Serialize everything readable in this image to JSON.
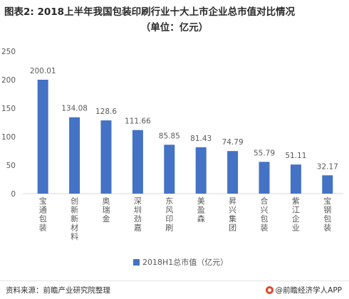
{
  "header": {
    "title": "图表2: 2018上半年我国包装印刷行业十大上市企业总市值对比情况",
    "subtitle": "（单位：亿元）"
  },
  "footer": {
    "source": "资料来源：前瞻产业研究院整理",
    "brand": "@前瞻经济学人APP",
    "brand_icon": "qianzhan-logo-icon"
  },
  "colors": {
    "bar": "#4472C4",
    "axis": "#d9d9d9",
    "text": "#595959"
  },
  "chart_data": {
    "type": "bar",
    "title": "图表2: 2018上半年我国包装印刷行业十大上市企业总市值对比情况",
    "subtitle": "（单位：亿元）",
    "categories": [
      "宝通包装",
      "创新新材料",
      "奥瑞金",
      "深圳劲嘉",
      "东风印刷",
      "美盈森",
      "昇兴集团",
      "合兴包装",
      "紫江企业",
      "宝钢包装"
    ],
    "series": [
      {
        "name": "2018H1总市值（亿元）",
        "values": [
          200.01,
          134.08,
          128.6,
          111.66,
          85.85,
          81.43,
          74.79,
          55.79,
          51.11,
          32.17
        ]
      }
    ],
    "data_labels": [
      "200.01",
      "134.08",
      "128.6",
      "111.66",
      "85.85",
      "81.43",
      "74.79",
      "55.79",
      "51.11",
      "32.17"
    ],
    "y_ticks": [
      0,
      50,
      100,
      150,
      200,
      250
    ],
    "ylim": [
      0,
      250
    ],
    "grid": false,
    "legend_position": "bottom-center"
  }
}
